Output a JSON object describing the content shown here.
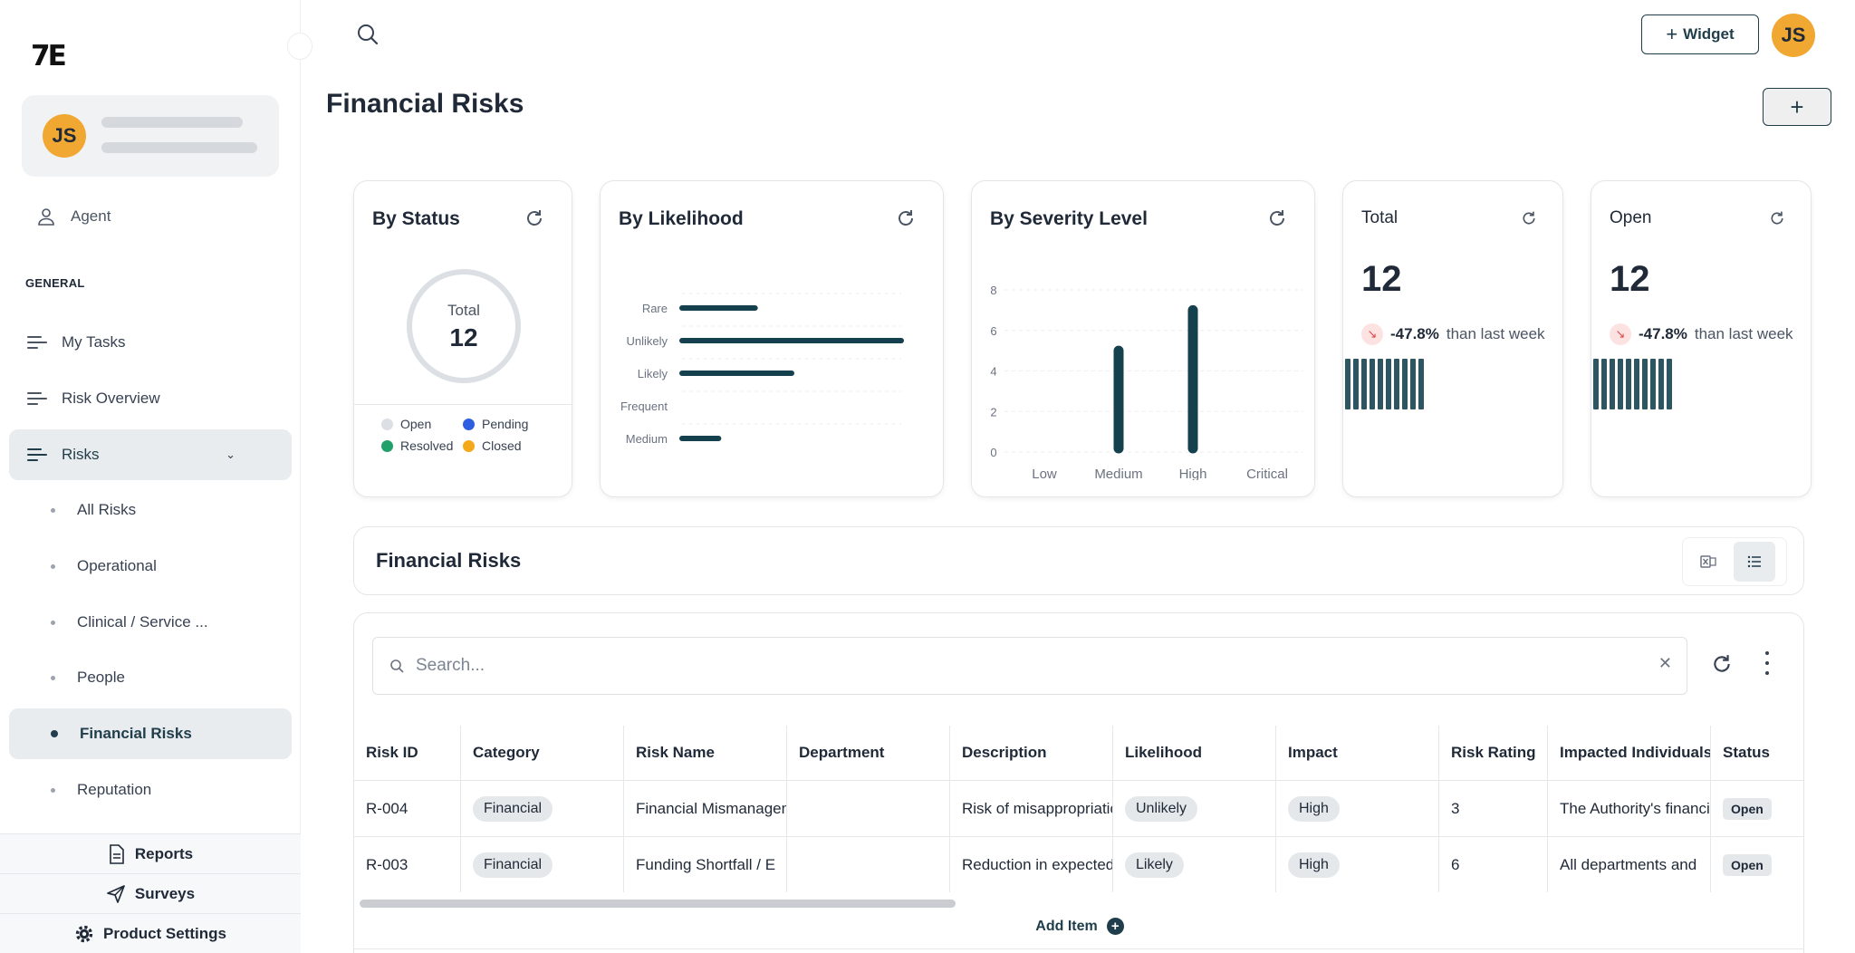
{
  "app": {
    "logo_text": "7E"
  },
  "user": {
    "initials": "JS"
  },
  "sidebar": {
    "agent_label": "Agent",
    "section_label": "GENERAL",
    "items": [
      {
        "label": "My Tasks"
      },
      {
        "label": "Risk Overview"
      },
      {
        "label": "Risks"
      }
    ],
    "sub_items": [
      {
        "label": "All Risks"
      },
      {
        "label": "Operational"
      },
      {
        "label": "Clinical / Service ..."
      },
      {
        "label": "People"
      },
      {
        "label": "Financial Risks"
      },
      {
        "label": "Reputation"
      }
    ],
    "footer": [
      {
        "label": "Reports"
      },
      {
        "label": "Surveys"
      },
      {
        "label": "Product Settings"
      }
    ]
  },
  "header": {
    "widget_label": "Widget",
    "page_title": "Financial Risks"
  },
  "cards": {
    "status": {
      "title": "By Status",
      "total_label": "Total",
      "total_value": "12",
      "legend": [
        {
          "label": "Open",
          "color": "#dcdfe3"
        },
        {
          "label": "Pending",
          "color": "#2f5fe0"
        },
        {
          "label": "Resolved",
          "color": "#22a06b"
        },
        {
          "label": "Closed",
          "color": "#f4a91c"
        }
      ]
    },
    "likelihood": {
      "title": "By Likelihood"
    },
    "severity": {
      "title": "By Severity Level"
    },
    "total": {
      "title": "Total",
      "value": "12",
      "trend_pct": "-47.8%",
      "trend_text": "than last week",
      "spark_bars": 10
    },
    "open": {
      "title": "Open",
      "value": "12",
      "trend_pct": "-47.8%",
      "trend_text": "than last week",
      "spark_bars": 10
    }
  },
  "chart_data": [
    {
      "type": "bar",
      "orientation": "horizontal",
      "title": "By Likelihood",
      "categories": [
        "Rare",
        "Unlikely",
        "Likely",
        "Frequent",
        "Medium"
      ],
      "values": [
        2,
        6,
        3,
        0,
        1
      ],
      "xlim": [
        0,
        6
      ],
      "x_ticks": [
        0,
        2,
        4,
        6
      ],
      "grid": true,
      "color": "#15404e"
    },
    {
      "type": "bar",
      "orientation": "vertical",
      "title": "By Severity Level",
      "categories": [
        "Low",
        "Medium",
        "High",
        "Critical"
      ],
      "values": [
        0,
        5,
        7,
        0
      ],
      "ylim": [
        0,
        8
      ],
      "y_ticks": [
        0,
        2,
        4,
        6,
        8
      ],
      "grid": true,
      "color": "#15404e"
    }
  ],
  "table": {
    "panel_title": "Financial Risks",
    "search_placeholder": "Search...",
    "columns": [
      "Risk ID",
      "Category",
      "Risk Name",
      "Department",
      "Description",
      "Likelihood",
      "Impact",
      "Risk Rating",
      "Impacted Individuals",
      "Status"
    ],
    "rows": [
      [
        "R-004",
        "Financial",
        "Financial Mismanagement",
        "",
        "Risk of misappropriation",
        "Unlikely",
        "High",
        "3",
        "The Authority's financial",
        "Open"
      ],
      [
        "R-003",
        "Financial",
        "Funding Shortfall / E",
        "",
        "Reduction in expected",
        "Likely",
        "High",
        "6",
        "All departments and",
        "Open"
      ]
    ],
    "add_item_label": "Add Item"
  }
}
